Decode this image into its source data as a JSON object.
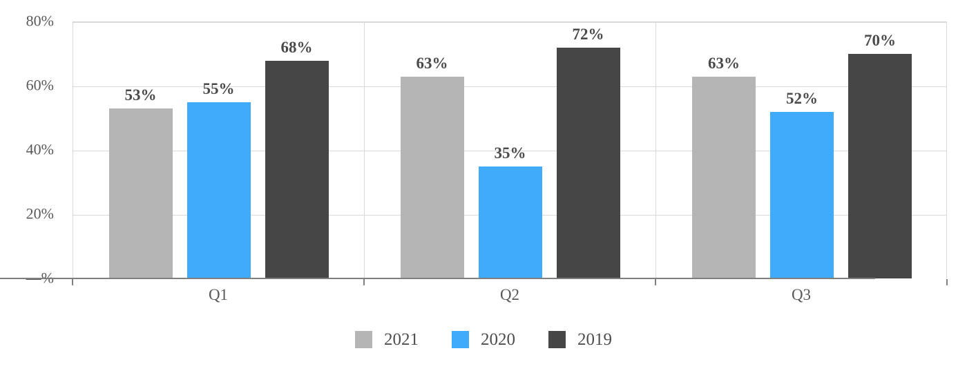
{
  "chart_data": {
    "type": "bar",
    "title": "",
    "categories": [
      "Q1",
      "Q2",
      "Q3"
    ],
    "series": [
      {
        "name": "2021",
        "color": "#b5b5b5",
        "values": [
          53,
          63,
          63
        ],
        "labels": [
          "53%",
          "63%",
          "63%"
        ]
      },
      {
        "name": "2020",
        "color": "#41abfb",
        "values": [
          55,
          35,
          52
        ],
        "labels": [
          "55%",
          "35%",
          "52%"
        ]
      },
      {
        "name": "2019",
        "color": "#464646",
        "values": [
          68,
          72,
          70
        ],
        "labels": [
          "68%",
          "72%",
          "70%"
        ]
      }
    ],
    "y_axis": {
      "max": 80,
      "ticks": [
        {
          "value": 0,
          "label": "—%"
        },
        {
          "value": 20,
          "label": "20%"
        },
        {
          "value": 40,
          "label": "40%"
        },
        {
          "value": 60,
          "label": "60%"
        },
        {
          "value": 80,
          "label": "80%"
        }
      ]
    },
    "legend": {
      "position": "bottom",
      "entries": [
        "2021",
        "2020",
        "2019"
      ]
    },
    "grid": true,
    "colors": {
      "axis_line": "#7f7f7f",
      "gridline": "#d9d9d9",
      "data_label": "#4a4a4a",
      "axis_tick_label": "#595959",
      "category_label": "#595959",
      "legend_label": "#4d4d4d"
    }
  }
}
